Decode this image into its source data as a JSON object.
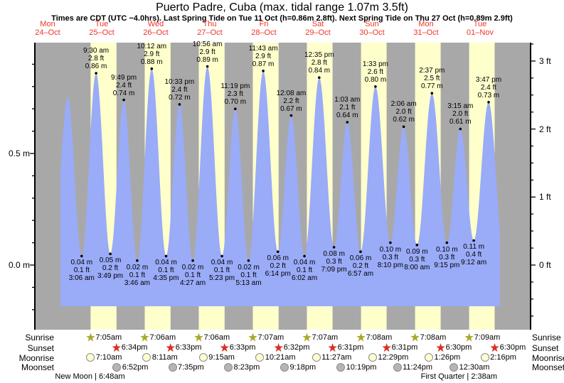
{
  "header": {
    "title": "Puerto Padre, Cuba (max. tidal range 1.07m 3.5ft)",
    "subtitle": "Times are CDT (UTC −4.0hrs). Last Spring Tide on Tue 11 Oct (h=0.86m 2.8ft). Next Spring Tide on Thu 27 Oct (h=0.89m 2.9ft)"
  },
  "colors": {
    "night_band": "#a8a8a8",
    "day_band": "#ffffcc",
    "tide_fill": "#9aabf8",
    "day_label_red": "#f03428",
    "sunrise_star": "#a8aa28",
    "sunset_star": "#d93025",
    "moonrise_fill": "#ffffd0",
    "moonset_fill": "#b5b5b1",
    "axis_black": "#000000"
  },
  "axes": {
    "left_labels": [
      {
        "text": "0.5 m",
        "value": 0.5
      },
      {
        "text": "0.0 m",
        "value": 0.0
      }
    ],
    "right_labels": [
      {
        "text": "3 ft",
        "value": 3
      },
      {
        "text": "2 ft",
        "value": 2
      },
      {
        "text": "1 ft",
        "value": 1
      },
      {
        "text": "0 ft",
        "value": 0
      }
    ]
  },
  "chart_data": {
    "type": "area",
    "title": "Tide height curve, Mon 24-Oct to Tue 01-Nov",
    "ylim_m": [
      -0.29,
      1.0
    ],
    "days": [
      {
        "weekday": "Mon",
        "date": "24–Oct"
      },
      {
        "weekday": "Tue",
        "date": "25–Oct"
      },
      {
        "weekday": "Wed",
        "date": "26–Oct"
      },
      {
        "weekday": "Thu",
        "date": "27–Oct"
      },
      {
        "weekday": "Fri",
        "date": "28–Oct"
      },
      {
        "weekday": "Sat",
        "date": "29–Oct"
      },
      {
        "weekday": "Sun",
        "date": "30–Oct"
      },
      {
        "weekday": "Mon",
        "date": "31–Oct"
      },
      {
        "weekday": "Tue",
        "date": "01–Nov"
      }
    ],
    "extremes": [
      {
        "day": 1,
        "time": "3:06 am",
        "ft": "0.1 ft",
        "m": "0.04 m",
        "type": "low"
      },
      {
        "day": 1,
        "time": "9:30 am",
        "ft": "2.8 ft",
        "m": "0.86 m",
        "type": "high"
      },
      {
        "day": 1,
        "time": "3:49 pm",
        "ft": "0.2 ft",
        "m": "0.05 m",
        "type": "low"
      },
      {
        "day": 1,
        "time": "9:49 pm",
        "ft": "2.4 ft",
        "m": "0.74 m",
        "type": "high"
      },
      {
        "day": 2,
        "time": "3:46 am",
        "ft": "0.1 ft",
        "m": "0.02 m",
        "type": "low"
      },
      {
        "day": 2,
        "time": "10:12 am",
        "ft": "2.9 ft",
        "m": "0.88 m",
        "type": "high"
      },
      {
        "day": 2,
        "time": "4:35 pm",
        "ft": "0.1 ft",
        "m": "0.04 m",
        "type": "low"
      },
      {
        "day": 2,
        "time": "10:33 pm",
        "ft": "2.4 ft",
        "m": "0.72 m",
        "type": "high"
      },
      {
        "day": 3,
        "time": "4:27 am",
        "ft": "0.1 ft",
        "m": "0.02 m",
        "type": "low"
      },
      {
        "day": 3,
        "time": "10:56 am",
        "ft": "2.9 ft",
        "m": "0.89 m",
        "type": "high"
      },
      {
        "day": 3,
        "time": "5:23 pm",
        "ft": "0.1 ft",
        "m": "0.04 m",
        "type": "low"
      },
      {
        "day": 3,
        "time": "11:19 pm",
        "ft": "2.3 ft",
        "m": "0.70 m",
        "type": "high"
      },
      {
        "day": 4,
        "time": "5:13 am",
        "ft": "0.1 ft",
        "m": "0.02 m",
        "type": "low"
      },
      {
        "day": 4,
        "time": "11:43 am",
        "ft": "2.9 ft",
        "m": "0.87 m",
        "type": "high"
      },
      {
        "day": 4,
        "time": "6:14 pm",
        "ft": "0.2 ft",
        "m": "0.06 m",
        "type": "low"
      },
      {
        "day": 5,
        "time": "12:08 am",
        "ft": "2.2 ft",
        "m": "0.67 m",
        "type": "high"
      },
      {
        "day": 5,
        "time": "6:02 am",
        "ft": "0.1 ft",
        "m": "0.04 m",
        "type": "low"
      },
      {
        "day": 5,
        "time": "12:35 pm",
        "ft": "2.8 ft",
        "m": "0.84 m",
        "type": "high"
      },
      {
        "day": 5,
        "time": "7:09 pm",
        "ft": "0.3 ft",
        "m": "0.08 m",
        "type": "low"
      },
      {
        "day": 6,
        "time": "1:03 am",
        "ft": "2.1 ft",
        "m": "0.64 m",
        "type": "high"
      },
      {
        "day": 6,
        "time": "6:57 am",
        "ft": "0.2 ft",
        "m": "0.06 m",
        "type": "low"
      },
      {
        "day": 6,
        "time": "1:33 pm",
        "ft": "2.6 ft",
        "m": "0.80 m",
        "type": "high"
      },
      {
        "day": 6,
        "time": "8:10 pm",
        "ft": "0.3 ft",
        "m": "0.10 m",
        "type": "low"
      },
      {
        "day": 7,
        "time": "2:06 am",
        "ft": "2.0 ft",
        "m": "0.62 m",
        "type": "high"
      },
      {
        "day": 7,
        "time": "8:00 am",
        "ft": "0.3 ft",
        "m": "0.09 m",
        "type": "low"
      },
      {
        "day": 7,
        "time": "2:37 pm",
        "ft": "2.5 ft",
        "m": "0.77 m",
        "type": "high"
      },
      {
        "day": 7,
        "time": "9:15 pm",
        "ft": "0.3 ft",
        "m": "0.10 m",
        "type": "low"
      },
      {
        "day": 8,
        "time": "3:15 am",
        "ft": "2.0 ft",
        "m": "0.61 m",
        "type": "high"
      },
      {
        "day": 8,
        "time": "9:12 am",
        "ft": "0.4 ft",
        "m": "0.11 m",
        "type": "low"
      },
      {
        "day": 8,
        "time": "3:47 pm",
        "ft": "2.4 ft",
        "m": "0.73 m",
        "type": "high"
      }
    ],
    "curve_edge_points": [
      {
        "day": 0,
        "time": "2:10 pm",
        "value_m": 0.03
      },
      {
        "day": 0,
        "time": "8:55 pm",
        "value_m": 0.75
      },
      {
        "day": 8,
        "time": "10:30 pm",
        "value_m": 0.05
      }
    ]
  },
  "almanac": {
    "rows": [
      {
        "label": "Sunrise",
        "icon": "sunrise-star",
        "entries": [
          {
            "day": 1,
            "time": "7:05am"
          },
          {
            "day": 2,
            "time": "7:06am"
          },
          {
            "day": 3,
            "time": "7:06am"
          },
          {
            "day": 4,
            "time": "7:07am"
          },
          {
            "day": 5,
            "time": "7:07am"
          },
          {
            "day": 6,
            "time": "7:08am"
          },
          {
            "day": 7,
            "time": "7:08am"
          },
          {
            "day": 8,
            "time": "7:09am"
          }
        ]
      },
      {
        "label": "Sunset",
        "icon": "sunset-star",
        "entries": [
          {
            "day": 1,
            "time": "6:34pm"
          },
          {
            "day": 2,
            "time": "6:33pm"
          },
          {
            "day": 3,
            "time": "6:33pm"
          },
          {
            "day": 4,
            "time": "6:32pm"
          },
          {
            "day": 5,
            "time": "6:31pm"
          },
          {
            "day": 6,
            "time": "6:31pm"
          },
          {
            "day": 7,
            "time": "6:30pm"
          },
          {
            "day": 8,
            "time": "6:30pm"
          }
        ]
      },
      {
        "label": "Moonrise",
        "icon": "moonrise-circle",
        "entries": [
          {
            "day": 1,
            "time": "7:10am"
          },
          {
            "day": 2,
            "time": "8:11am"
          },
          {
            "day": 3,
            "time": "9:15am"
          },
          {
            "day": 4,
            "time": "10:21am"
          },
          {
            "day": 5,
            "time": "11:27am"
          },
          {
            "day": 6,
            "time": "12:29pm"
          },
          {
            "day": 7,
            "time": "1:26pm"
          },
          {
            "day": 8,
            "time": "2:16pm"
          }
        ]
      },
      {
        "label": "Moonset",
        "icon": "moonset-circle",
        "entries": [
          {
            "day": 1,
            "time": "6:52pm"
          },
          {
            "day": 2,
            "time": "7:35pm"
          },
          {
            "day": 3,
            "time": "8:23pm"
          },
          {
            "day": 4,
            "time": "9:18pm"
          },
          {
            "day": 5,
            "time": "10:19pm"
          },
          {
            "day": 6,
            "time": "11:24pm"
          },
          {
            "day": 8,
            "time": "12:30am"
          }
        ]
      }
    ],
    "phases": [
      {
        "text": "New Moon | 6:48am",
        "day": 1,
        "time": "6:48am"
      },
      {
        "text": "First Quarter | 2:38am",
        "day": 8,
        "time": "2:38am"
      }
    ]
  }
}
